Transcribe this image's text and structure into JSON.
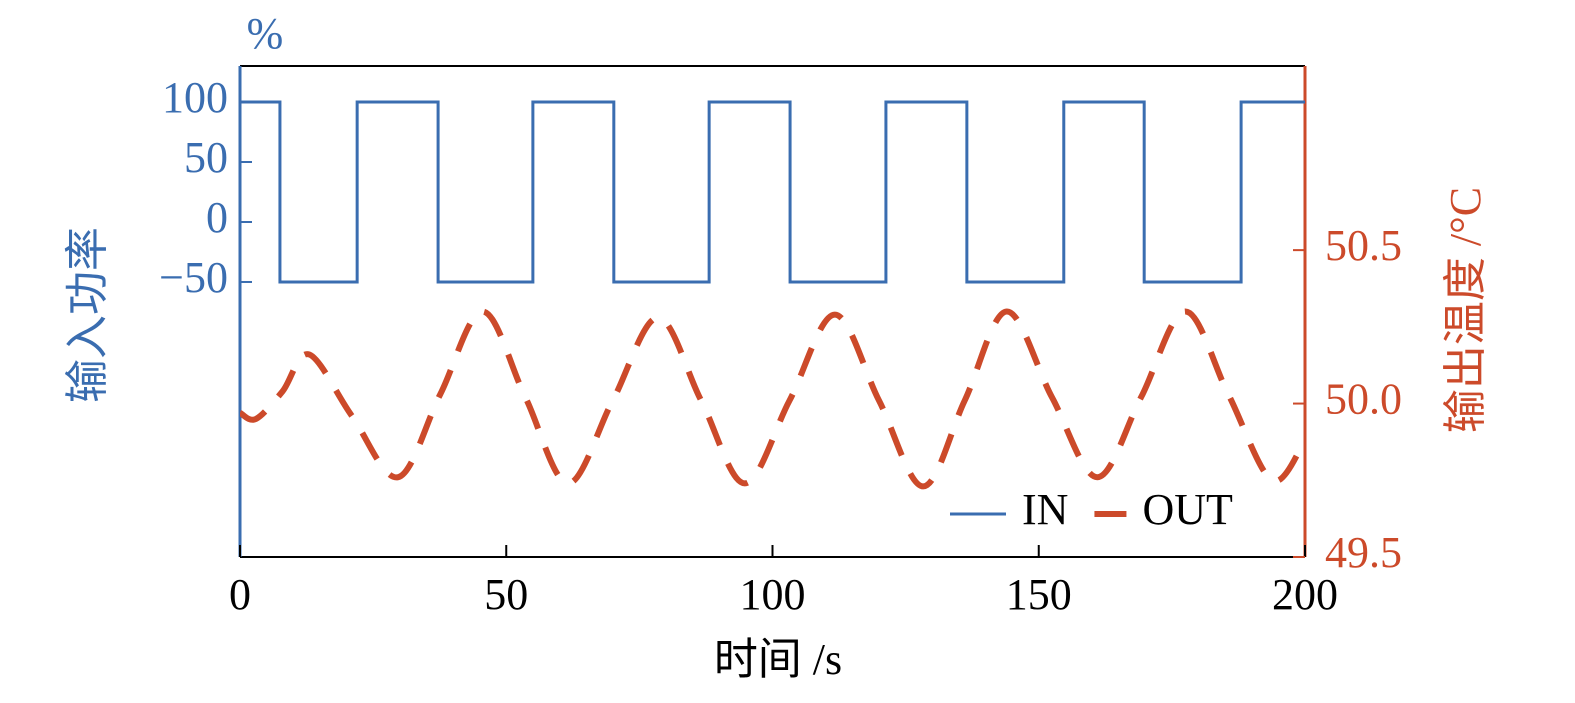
{
  "chart_data": {
    "type": "line",
    "title": "%",
    "xlabel": "时间 /s",
    "ylabel": "输入功率",
    "y2label": "输出温度 /°C",
    "xlim": [
      0,
      200
    ],
    "xticks": [
      0,
      50,
      100,
      150,
      200
    ],
    "ylim": [
      -279.2,
      130
    ],
    "yticks": [
      100,
      50,
      0,
      {
        "value": -50,
        "label": "−50"
      }
    ],
    "y2lim": [
      49.5,
      51.1
    ],
    "y2ticks": [
      49.5,
      {
        "value": 50,
        "label": "50.0"
      },
      50.5
    ],
    "legend": "lower right",
    "series": [
      {
        "name": "IN",
        "color": "#3a6db0",
        "style": "solid",
        "x": [
          0,
          7.5,
          7.5,
          22,
          22,
          37.2,
          37.2,
          55,
          55,
          70.2,
          70.2,
          88.1,
          88.1,
          103.3,
          103.3,
          121.3,
          121.3,
          136.5,
          136.5,
          154.7,
          154.7,
          169.8,
          169.8,
          188,
          188,
          200
        ],
        "values": [
          100,
          100,
          -50,
          -50,
          100,
          100,
          -50,
          -50,
          100,
          100,
          -50,
          -50,
          100,
          100,
          -50,
          -50,
          100,
          100,
          -50,
          -50,
          100,
          100,
          -50,
          -50,
          100,
          100
        ]
      },
      {
        "name": "OUT",
        "color": "#cc4a2a",
        "style": "dashed",
        "axis": "y2",
        "x": [
          0,
          3,
          8,
          13,
          21,
          29.7,
          37.6,
          45.6,
          53.6,
          61.6,
          70,
          78.5,
          86.6,
          94.8,
          103.2,
          111.7,
          120,
          128.3,
          136.1,
          144,
          152.5,
          161,
          169.2,
          177.5,
          185.6,
          193.8,
          200
        ],
        "values": [
          49.97,
          49.95,
          50.04,
          50.16,
          49.96,
          49.76,
          50.03,
          50.3,
          50.02,
          49.74,
          50.01,
          50.28,
          50.01,
          49.74,
          50.01,
          50.29,
          50.01,
          49.73,
          50.01,
          50.3,
          50.02,
          49.76,
          50.02,
          50.3,
          50.03,
          49.75,
          49.88
        ]
      }
    ]
  }
}
